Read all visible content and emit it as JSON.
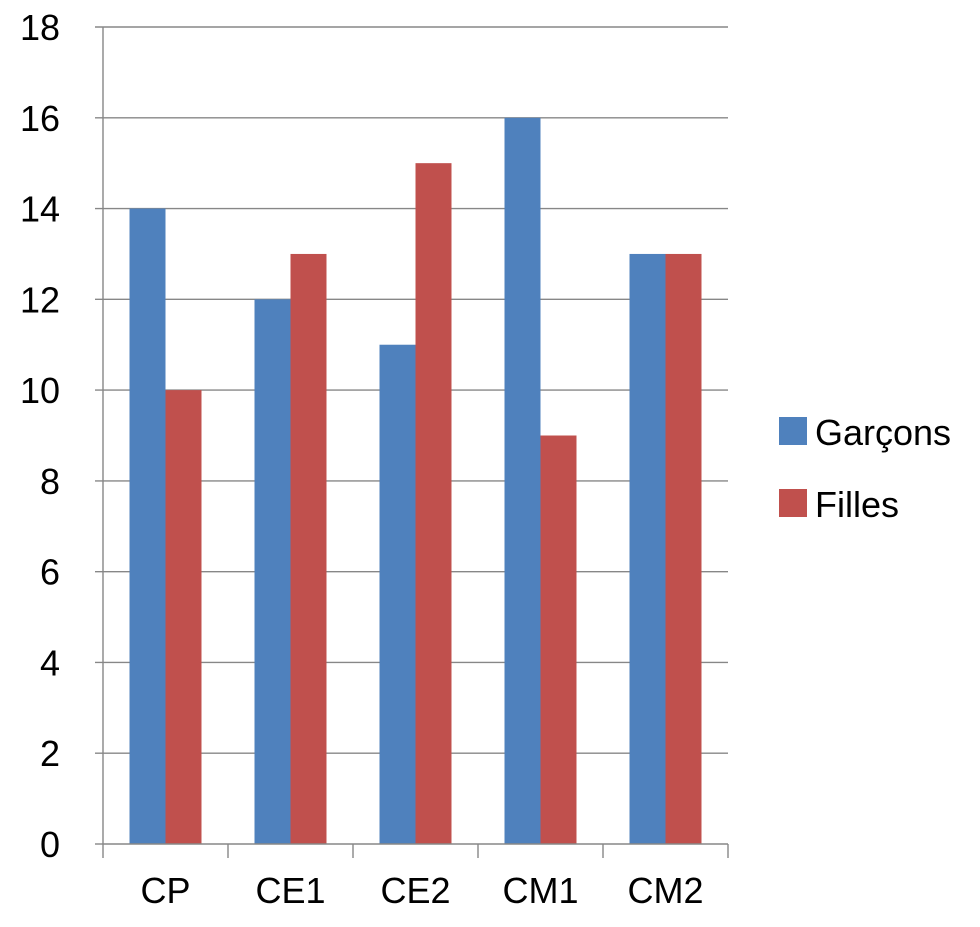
{
  "chart_data": {
    "type": "bar",
    "categories": [
      "CP",
      "CE1",
      "CE2",
      "CM1",
      "CM2"
    ],
    "series": [
      {
        "name": "Garçons",
        "values": [
          14,
          12,
          11,
          16,
          13
        ],
        "color": "#4F81BD"
      },
      {
        "name": "Filles",
        "values": [
          10,
          13,
          15,
          9,
          13
        ],
        "color": "#C0504D"
      }
    ],
    "title": "",
    "xlabel": "",
    "ylabel": "",
    "ylim": [
      0,
      18
    ],
    "yticks": [
      0,
      2,
      4,
      6,
      8,
      10,
      12,
      14,
      16,
      18
    ],
    "grid": true,
    "legend_position": "right"
  }
}
